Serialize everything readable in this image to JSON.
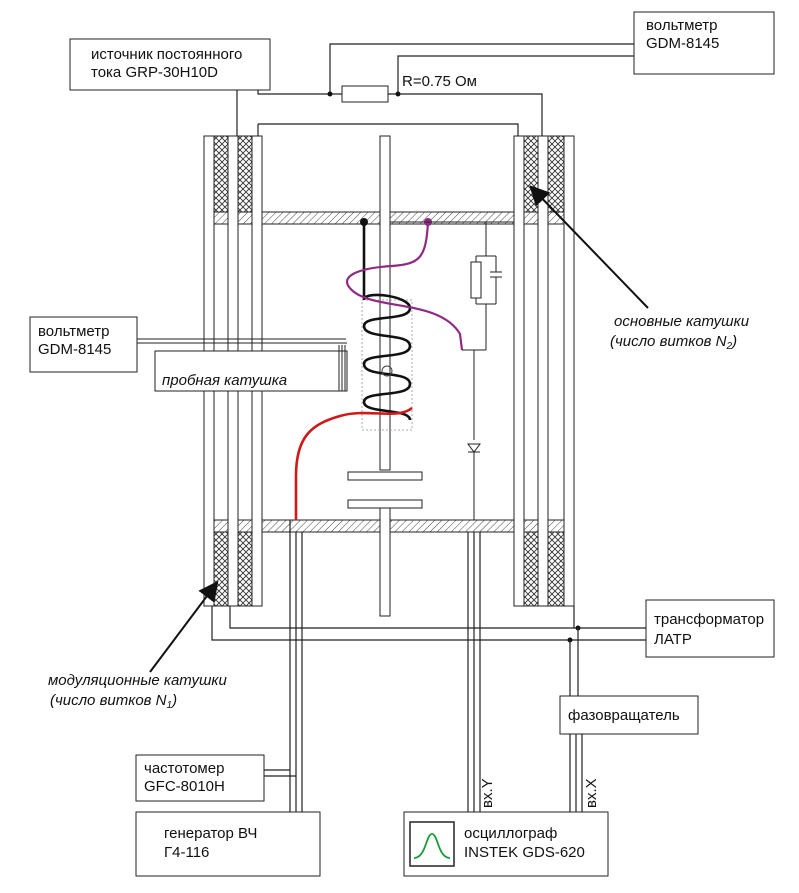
{
  "labels": {
    "dc_source_line1": "источник постоянного",
    "dc_source_line2": "тока GRP-30H10D",
    "voltmeter_top_line1": "вольтметр",
    "voltmeter_top_line2": "GDM-8145",
    "resistor": "R=0.75 Ом",
    "voltmeter_left_line1": "вольтметр",
    "voltmeter_left_line2": "GDM-8145",
    "probe_coil": "пробная катушка",
    "main_coils_line1": "основные катушки",
    "main_coils_line2_prefix": "(число витков N",
    "main_coils_line2_sub": "2",
    "main_coils_line2_suffix": ")",
    "modulation_coils_line1": "модуляционные катушки",
    "modulation_coils_line2_prefix": "(число витков N",
    "modulation_coils_line2_sub": "1",
    "modulation_coils_line2_suffix": ")",
    "transformer_line1": "трансформатор",
    "transformer_line2": "ЛАТР",
    "phase_shifter": "фазовращатель",
    "freq_meter_line1": "частотомер",
    "freq_meter_line2": "GFC-8010H",
    "hf_generator_line1": "генератор ВЧ",
    "hf_generator_line2": "Г4-116",
    "oscilloscope_line1": "осциллограф",
    "oscilloscope_line2": "INSTEK GDS-620",
    "input_y": "вх.Y",
    "input_x": "вх.X"
  },
  "colors": {
    "line": "#222222",
    "probe_lead": "#d01818",
    "sample_lead": "#8e2a82",
    "trace": "#1a9a3a"
  }
}
